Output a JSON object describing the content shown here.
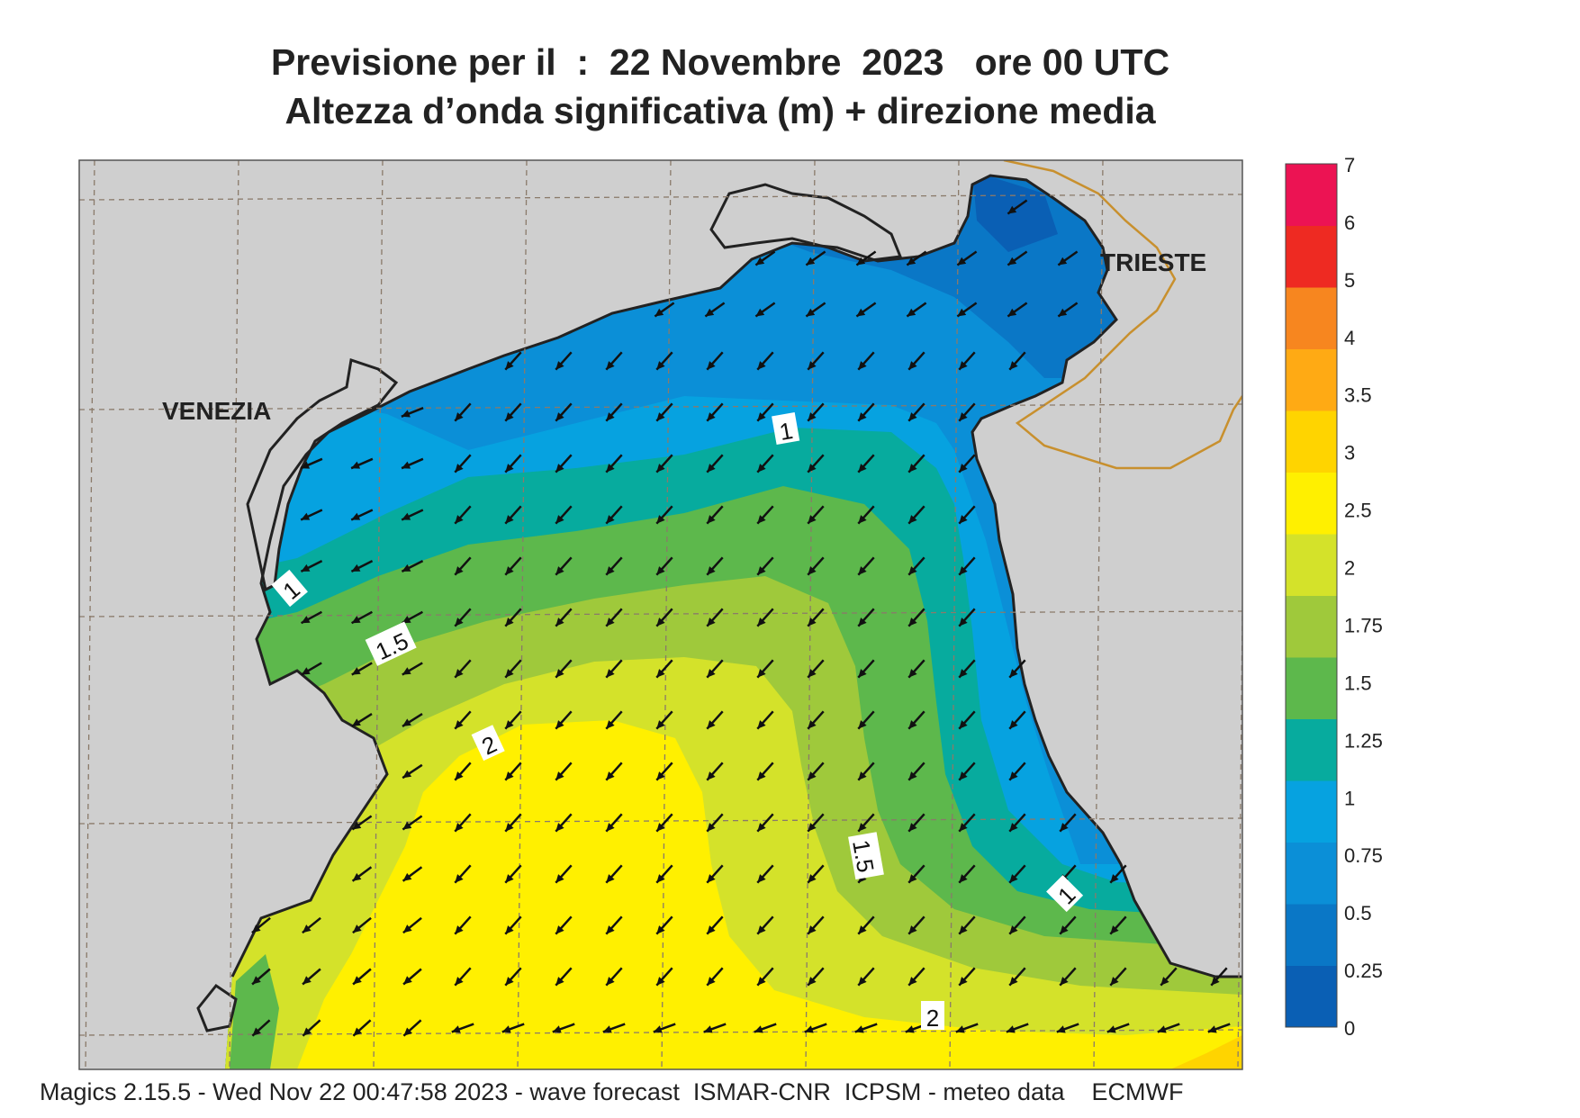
{
  "title": {
    "line1": "Previsione per il  :  22 Novembre  2023   ore 00 UTC",
    "line2": "Altezza d’onda significativa (m) + direzione media"
  },
  "map": {
    "cities": [
      {
        "name": "VENEZIA"
      },
      {
        "name": "TRIESTE"
      }
    ],
    "contour_labels": [
      "1",
      "1",
      "1.5",
      "2",
      "1.5",
      "1",
      "2"
    ],
    "arrow_direction": "south-west",
    "colors": {
      "land": "#cfcfcf",
      "border": "#c8902e",
      "coast": "#222222"
    }
  },
  "legend": {
    "ticks": [
      "7",
      "6",
      "5",
      "4",
      "3.5",
      "3",
      "2.5",
      "2",
      "1.75",
      "1.5",
      "1.25",
      "1",
      "0.75",
      "0.5",
      "0.25",
      "0"
    ],
    "colors": [
      "#0a5fb4",
      "#0a77c6",
      "#0b8fd7",
      "#06a2e0",
      "#07ab9e",
      "#5db84c",
      "#9fc93b",
      "#d4e22a",
      "#fff000",
      "#ffd400",
      "#ffaa14",
      "#f7861f",
      "#ee2a22",
      "#ec1353"
    ]
  },
  "footer": "Magics 2.15.5 - Wed Nov 22 00:47:58 2023 - wave forecast  ISMAR-CNR  ICPSM - meteo data    ECMWF"
}
